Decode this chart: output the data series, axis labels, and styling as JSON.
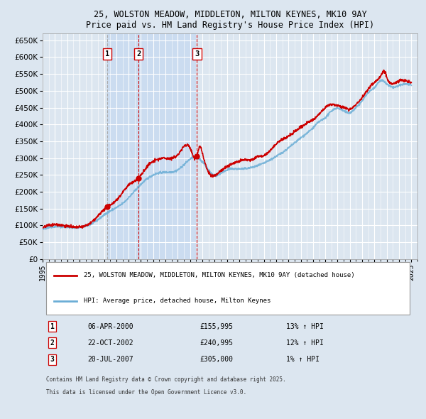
{
  "title": "25, WOLSTON MEADOW, MIDDLETON, MILTON KEYNES, MK10 9AY",
  "subtitle": "Price paid vs. HM Land Registry's House Price Index (HPI)",
  "xlabel": "",
  "ylabel": "",
  "ylim": [
    0,
    670000
  ],
  "yticks": [
    0,
    50000,
    100000,
    150000,
    200000,
    250000,
    300000,
    350000,
    400000,
    450000,
    500000,
    550000,
    600000,
    650000
  ],
  "ytick_labels": [
    "£0",
    "£50K",
    "£100K",
    "£150K",
    "£200K",
    "£250K",
    "£300K",
    "£350K",
    "£400K",
    "£450K",
    "£500K",
    "£550K",
    "£600K",
    "£650K"
  ],
  "xlim_start": 1995.0,
  "xlim_end": 2025.5,
  "background_color": "#dce6f0",
  "plot_bg_color": "#dce6f0",
  "grid_color": "#ffffff",
  "hpi_line_color": "#6baed6",
  "price_line_color": "#cc0000",
  "purchase_marker_color": "#cc0000",
  "vline_color_dashed": "#aaaaaa",
  "vline_color_dotdash": "#cc0000",
  "shade_color": "#c5d9f0",
  "purchases": [
    {
      "num": 1,
      "date_str": "06-APR-2000",
      "date_x": 2000.27,
      "price": 155995,
      "hpi_pct": "13%",
      "label": "1"
    },
    {
      "num": 2,
      "date_str": "22-OCT-2002",
      "date_x": 2002.81,
      "price": 240995,
      "hpi_pct": "12%",
      "label": "2"
    },
    {
      "num": 3,
      "date_str": "20-JUL-2007",
      "date_x": 2007.55,
      "price": 305000,
      "hpi_pct": "1%",
      "label": "3"
    }
  ],
  "legend_entries": [
    "25, WOLSTON MEADOW, MIDDLETON, MILTON KEYNES, MK10 9AY (detached house)",
    "HPI: Average price, detached house, Milton Keynes"
  ],
  "footer_lines": [
    "Contains HM Land Registry data © Crown copyright and database right 2025.",
    "This data is licensed under the Open Government Licence v3.0."
  ],
  "table_rows": [
    [
      "1",
      "06-APR-2000",
      "£155,995",
      "13% ↑ HPI"
    ],
    [
      "2",
      "22-OCT-2002",
      "£240,995",
      "12% ↑ HPI"
    ],
    [
      "3",
      "20-JUL-2007",
      "£305,000",
      "1% ↑ HPI"
    ]
  ]
}
